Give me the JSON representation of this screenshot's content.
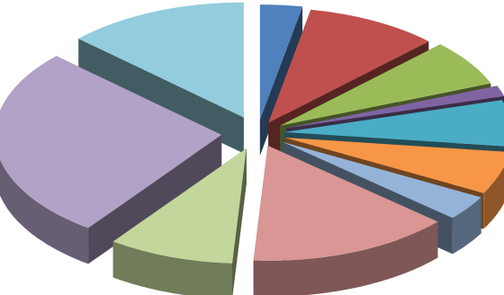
{
  "chart_data": {
    "type": "pie",
    "style": "3d-exploded",
    "title": "",
    "legend": "none",
    "labels": "none",
    "slices": [
      {
        "value": 3.0,
        "color": "#4f81bd"
      },
      {
        "value": 9.5,
        "color": "#c0504d"
      },
      {
        "value": 6.5,
        "color": "#9bbb59"
      },
      {
        "value": 1.5,
        "color": "#8064a2"
      },
      {
        "value": 6.5,
        "color": "#4bacc6"
      },
      {
        "value": 6.0,
        "color": "#f79646"
      },
      {
        "value": 3.5,
        "color": "#95b3d7"
      },
      {
        "value": 14.5,
        "color": "#d99694"
      },
      {
        "value": 9.0,
        "color": "#c3d69b"
      },
      {
        "value": 27.0,
        "color": "#b2a2c7"
      },
      {
        "value": 13.0,
        "color": "#93cddd"
      }
    ]
  }
}
